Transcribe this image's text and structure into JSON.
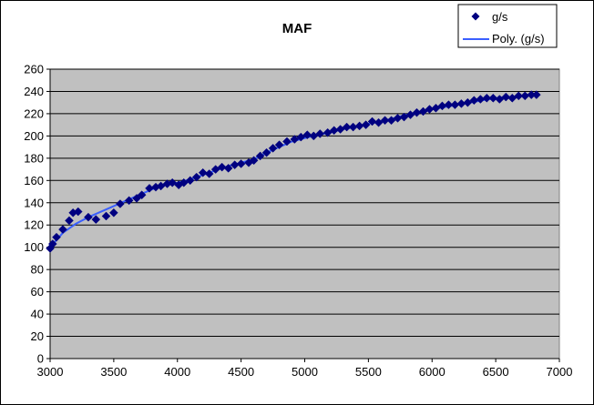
{
  "chart_data": {
    "type": "scatter",
    "title": "MAF",
    "xlabel": "",
    "ylabel": "",
    "xlim": [
      3000,
      7000
    ],
    "ylim": [
      0,
      260
    ],
    "xticks": [
      3000,
      3500,
      4000,
      4500,
      5000,
      5500,
      6000,
      6500,
      7000
    ],
    "yticks": [
      0,
      20,
      40,
      60,
      80,
      100,
      120,
      140,
      160,
      180,
      200,
      220,
      240,
      260
    ],
    "grid": "horizontal",
    "plot_background": "#c0c0c0",
    "legend_position": "top-right",
    "series": [
      {
        "name": "g/s",
        "marker": "diamond",
        "color": "#000080",
        "points": [
          [
            3000,
            99
          ],
          [
            3020,
            103
          ],
          [
            3050,
            109
          ],
          [
            3100,
            116
          ],
          [
            3150,
            124
          ],
          [
            3180,
            131
          ],
          [
            3220,
            132
          ],
          [
            3300,
            127
          ],
          [
            3360,
            125
          ],
          [
            3440,
            128
          ],
          [
            3500,
            131
          ],
          [
            3550,
            139
          ],
          [
            3620,
            142
          ],
          [
            3680,
            144
          ],
          [
            3720,
            147
          ],
          [
            3780,
            153
          ],
          [
            3830,
            154
          ],
          [
            3870,
            155
          ],
          [
            3920,
            157
          ],
          [
            3960,
            158
          ],
          [
            4010,
            156
          ],
          [
            4050,
            158
          ],
          [
            4100,
            160
          ],
          [
            4150,
            163
          ],
          [
            4200,
            167
          ],
          [
            4250,
            166
          ],
          [
            4300,
            170
          ],
          [
            4350,
            172
          ],
          [
            4400,
            171
          ],
          [
            4450,
            174
          ],
          [
            4500,
            175
          ],
          [
            4560,
            176
          ],
          [
            4600,
            178
          ],
          [
            4650,
            182
          ],
          [
            4700,
            185
          ],
          [
            4750,
            189
          ],
          [
            4800,
            192
          ],
          [
            4860,
            195
          ],
          [
            4920,
            197
          ],
          [
            4970,
            199
          ],
          [
            5020,
            201
          ],
          [
            5070,
            200
          ],
          [
            5120,
            202
          ],
          [
            5180,
            203
          ],
          [
            5230,
            205
          ],
          [
            5280,
            206
          ],
          [
            5330,
            208
          ],
          [
            5380,
            208
          ],
          [
            5430,
            209
          ],
          [
            5480,
            210
          ],
          [
            5530,
            213
          ],
          [
            5580,
            212
          ],
          [
            5630,
            214
          ],
          [
            5680,
            214
          ],
          [
            5730,
            216
          ],
          [
            5780,
            217
          ],
          [
            5830,
            219
          ],
          [
            5880,
            221
          ],
          [
            5930,
            222
          ],
          [
            5980,
            224
          ],
          [
            6030,
            225
          ],
          [
            6080,
            227
          ],
          [
            6130,
            228
          ],
          [
            6180,
            228
          ],
          [
            6230,
            229
          ],
          [
            6280,
            230
          ],
          [
            6330,
            232
          ],
          [
            6380,
            233
          ],
          [
            6430,
            234
          ],
          [
            6480,
            234
          ],
          [
            6530,
            233
          ],
          [
            6580,
            235
          ],
          [
            6630,
            234
          ],
          [
            6680,
            236
          ],
          [
            6730,
            236
          ],
          [
            6780,
            237
          ],
          [
            6820,
            237
          ]
        ]
      },
      {
        "name": "Poly. (g/s)",
        "type": "line",
        "color": "#3a5fff",
        "points": [
          [
            3000,
            100
          ],
          [
            3100,
            113
          ],
          [
            3200,
            121
          ],
          [
            3300,
            127
          ],
          [
            3400,
            132
          ],
          [
            3500,
            137
          ],
          [
            3600,
            142
          ],
          [
            3700,
            147
          ],
          [
            3800,
            152
          ],
          [
            3900,
            156
          ],
          [
            4000,
            158
          ],
          [
            4100,
            161
          ],
          [
            4200,
            165
          ],
          [
            4300,
            169
          ],
          [
            4400,
            173
          ],
          [
            4500,
            176
          ],
          [
            4600,
            179
          ],
          [
            4700,
            185
          ],
          [
            4800,
            190
          ],
          [
            4900,
            195
          ],
          [
            5000,
            198
          ],
          [
            5100,
            201
          ],
          [
            5200,
            203
          ],
          [
            5300,
            206
          ],
          [
            5400,
            208
          ],
          [
            5500,
            211
          ],
          [
            5600,
            213
          ],
          [
            5700,
            216
          ],
          [
            5800,
            219
          ],
          [
            5900,
            221
          ],
          [
            6000,
            224
          ],
          [
            6100,
            226
          ],
          [
            6200,
            228
          ],
          [
            6300,
            230
          ],
          [
            6400,
            232
          ],
          [
            6500,
            234
          ],
          [
            6600,
            235
          ],
          [
            6700,
            236
          ],
          [
            6820,
            238
          ]
        ]
      }
    ]
  }
}
